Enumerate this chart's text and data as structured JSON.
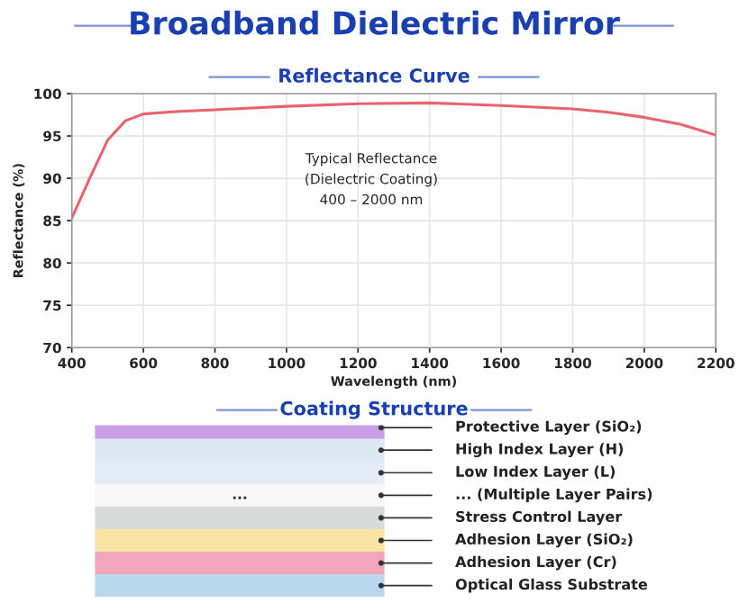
{
  "chart_data": [
    {
      "type": "line",
      "title": "Broadband Dielectric Mirror",
      "subtitle": "Reflectance Curve",
      "xlabel": "Wavelength (nm)",
      "ylabel": "Reflectance (%)",
      "x": [
        400,
        450,
        500,
        550,
        600,
        700,
        800,
        1000,
        1200,
        1400,
        1600,
        1800,
        1900,
        2000,
        2100,
        2200
      ],
      "series": [
        {
          "color": "#e8636b",
          "values": [
            85.3,
            90,
            94.5,
            96.8,
            97.6,
            97.9,
            98.1,
            98.5,
            98.8,
            98.9,
            98.6,
            98.2,
            97.8,
            97.2,
            96.4,
            95.1
          ]
        }
      ],
      "xlim": [
        400,
        2200
      ],
      "xticks": [
        400,
        600,
        800,
        1000,
        1200,
        1400,
        1600,
        1800,
        2000,
        2200
      ],
      "ylim": [
        70,
        100
      ],
      "yticks": [
        70,
        75,
        80,
        85,
        90,
        95,
        100
      ],
      "grid": true,
      "marker": "none",
      "line_style": "solid",
      "annotations": [
        "Typical Reflectance\n(Dielectric Coating)\n400 – 2000 nm"
      ]
    },
    {
      "type": "other",
      "title": "Coating Structure",
      "categories": [
        "Protective Layer (SiO₂)",
        "High Index Layer (H)",
        "Low Index Layer (L)",
        "... (Multiple Layer Pairs)",
        "Stress Control Layer",
        "Adhesion Layer (SiO₂)",
        "Adhesion Layer (Cr)",
        "Optical Glass Substrate"
      ],
      "colors": [
        "#c9a0e8",
        "#dce9f5",
        "#e3ecf6",
        "#f8f8f8",
        "#d8dcd8",
        "#f9e4a6",
        "#f2a6bc",
        "#b9d8ee"
      ],
      "annotations": [
        "..."
      ]
    }
  ]
}
